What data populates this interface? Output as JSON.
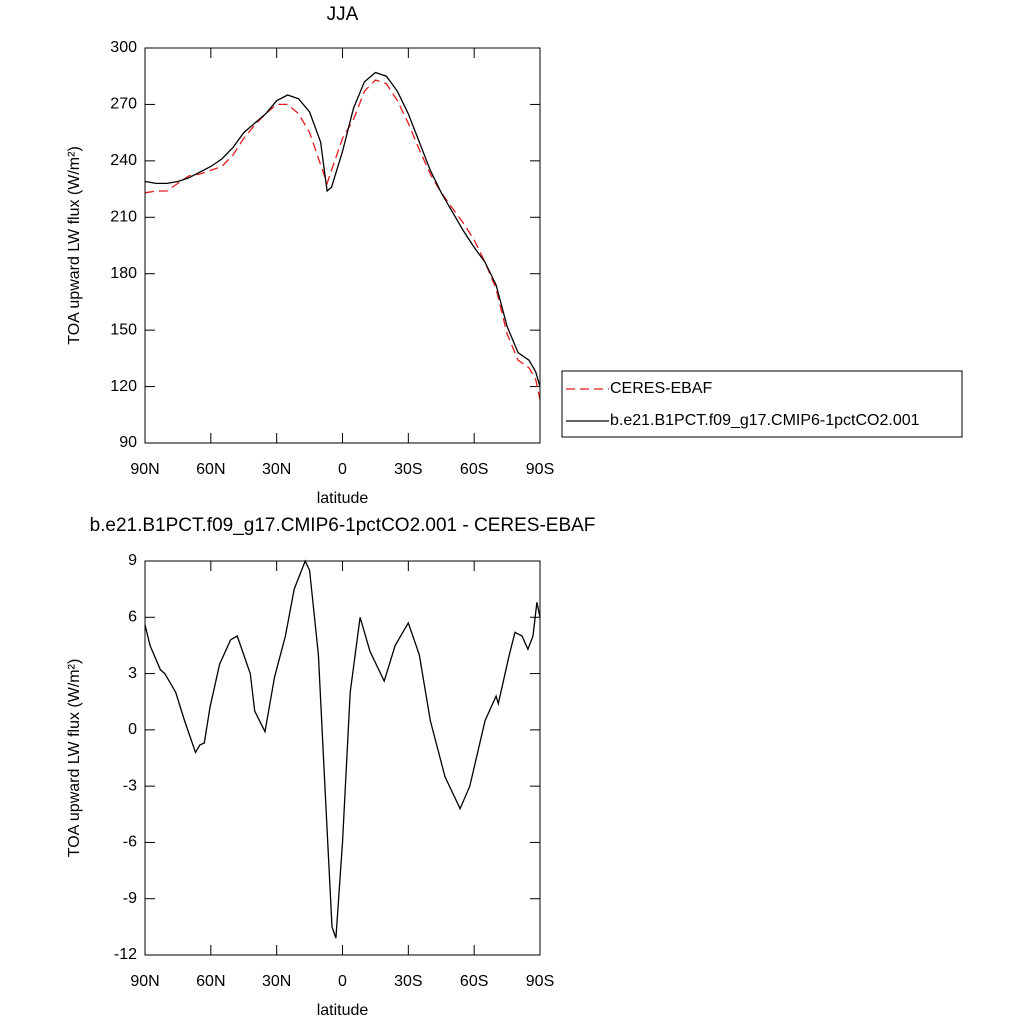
{
  "chart_data": [
    {
      "type": "line",
      "title": "JJA",
      "x_label": "latitude",
      "y_label": "TOA upward LW flux (W/m²)",
      "xlim": [
        90,
        -90
      ],
      "xticks": [
        {
          "value": 90,
          "label": "90N"
        },
        {
          "value": 60,
          "label": "60N"
        },
        {
          "value": 30,
          "label": "30N"
        },
        0,
        {
          "value": -30,
          "label": "30S"
        },
        {
          "value": -60,
          "label": "60S"
        },
        {
          "value": -90,
          "label": "90S"
        }
      ],
      "ylim": [
        90,
        300
      ],
      "yticks": [
        90,
        120,
        150,
        180,
        210,
        240,
        270,
        300
      ],
      "legend": "right",
      "series": [
        {
          "name": "CERES-EBAF",
          "color": "#e41a1c",
          "line_style": "dashed",
          "x": [
            90,
            85,
            80,
            75,
            70,
            65,
            60,
            55,
            50,
            45,
            40,
            35,
            30,
            25,
            20,
            15,
            10,
            7,
            5,
            0,
            -5,
            -10,
            -15,
            -20,
            -25,
            -30,
            -35,
            -40,
            -45,
            -50,
            -55,
            -60,
            -65,
            -70,
            -75,
            -80,
            -85,
            -88,
            -90
          ],
          "values": [
            223,
            224,
            224,
            228,
            232,
            233,
            235,
            237,
            243,
            252,
            259,
            265,
            270,
            270,
            265,
            255,
            238,
            228,
            235,
            252,
            262,
            277,
            283,
            281,
            272,
            260,
            246,
            233,
            223,
            215,
            207,
            198,
            186,
            172,
            148,
            134,
            130,
            124,
            113
          ]
        },
        {
          "name": "b.e21.B1PCT.f09_g17.CMIP6-1pctCO2.001",
          "color": "#000000",
          "line_style": "solid",
          "x": [
            90,
            85,
            80,
            75,
            70,
            65,
            60,
            55,
            50,
            45,
            40,
            35,
            30,
            25,
            20,
            15,
            10,
            7,
            5,
            0,
            -5,
            -10,
            -15,
            -20,
            -25,
            -30,
            -35,
            -40,
            -45,
            -50,
            -55,
            -60,
            -65,
            -70,
            -75,
            -80,
            -85,
            -88,
            -90
          ],
          "values": [
            229,
            228,
            228,
            229,
            231,
            234,
            237,
            241,
            247,
            255,
            260,
            265,
            272,
            275,
            273,
            266,
            250,
            224,
            226,
            245,
            268,
            282,
            287,
            285,
            277,
            265,
            250,
            235,
            223,
            213,
            203,
            194,
            186,
            174,
            152,
            138,
            134,
            128,
            120
          ]
        }
      ]
    },
    {
      "type": "line",
      "title": "b.e21.B1PCT.f09_g17.CMIP6-1pctCO2.001 - CERES-EBAF",
      "x_label": "latitude",
      "y_label": "TOA upward LW flux (W/m²)",
      "xlim": [
        90,
        -90
      ],
      "xticks": [
        {
          "value": 90,
          "label": "90N"
        },
        {
          "value": 60,
          "label": "60N"
        },
        {
          "value": 30,
          "label": "30N"
        },
        0,
        {
          "value": -30,
          "label": "30S"
        },
        {
          "value": -60,
          "label": "60S"
        },
        {
          "value": -90,
          "label": "90S"
        }
      ],
      "ylim": [
        -12,
        9
      ],
      "yticks": [
        -12,
        -9,
        -6,
        -3,
        0,
        3,
        6,
        9
      ],
      "color": "#000000",
      "line_style": "solid",
      "x": [
        90,
        87.7,
        83,
        81,
        76,
        72,
        67,
        65,
        63,
        60.4,
        56,
        51,
        48,
        42,
        40,
        35.3,
        31,
        26,
        22,
        17,
        15,
        11,
        8,
        4.8,
        3,
        0,
        -3.5,
        -8,
        -12.5,
        -19,
        -24,
        -30,
        -35,
        -40,
        -46.7,
        -53.6,
        -58,
        -65,
        -70,
        -71,
        -76,
        -78.6,
        -81.8,
        -84.5,
        -86.8,
        -88.6,
        -90
      ],
      "values": [
        5.6,
        4.5,
        3.2,
        3.0,
        2.0,
        0.5,
        -1.2,
        -0.8,
        -0.7,
        1.2,
        3.5,
        4.8,
        5.0,
        3.0,
        1.0,
        -0.1,
        2.8,
        5.0,
        7.5,
        9.0,
        8.5,
        4.0,
        -3.0,
        -10.5,
        -11.1,
        -6.0,
        2.0,
        6.0,
        4.2,
        2.6,
        4.5,
        5.7,
        4.0,
        0.5,
        -2.5,
        -4.2,
        -3.0,
        0.5,
        1.8,
        1.4,
        4.0,
        5.2,
        5.0,
        4.3,
        5.0,
        6.8,
        6.0
      ]
    }
  ]
}
